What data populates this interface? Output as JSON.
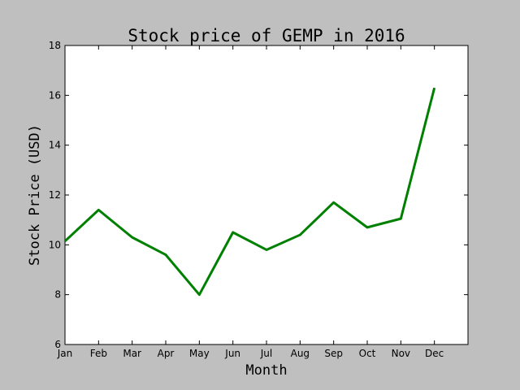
{
  "chart_data": {
    "type": "line",
    "title": "Stock price of GEMP in 2016",
    "xlabel": "Month",
    "ylabel": "Stock Price (USD)",
    "categories": [
      "Jan",
      "Feb",
      "Mar",
      "Apr",
      "May",
      "Jun",
      "Jul",
      "Aug",
      "Sep",
      "Oct",
      "Nov",
      "Dec"
    ],
    "series": [
      {
        "values": [
          10.15,
          11.4,
          10.3,
          9.6,
          8.0,
          10.5,
          9.8,
          10.4,
          11.7,
          10.7,
          11.05,
          16.3
        ],
        "color": "#008000"
      }
    ],
    "ylim": [
      6,
      18
    ],
    "yticks": [
      6,
      8,
      10,
      12,
      14,
      16,
      18
    ],
    "grid": false,
    "legend": "none"
  }
}
